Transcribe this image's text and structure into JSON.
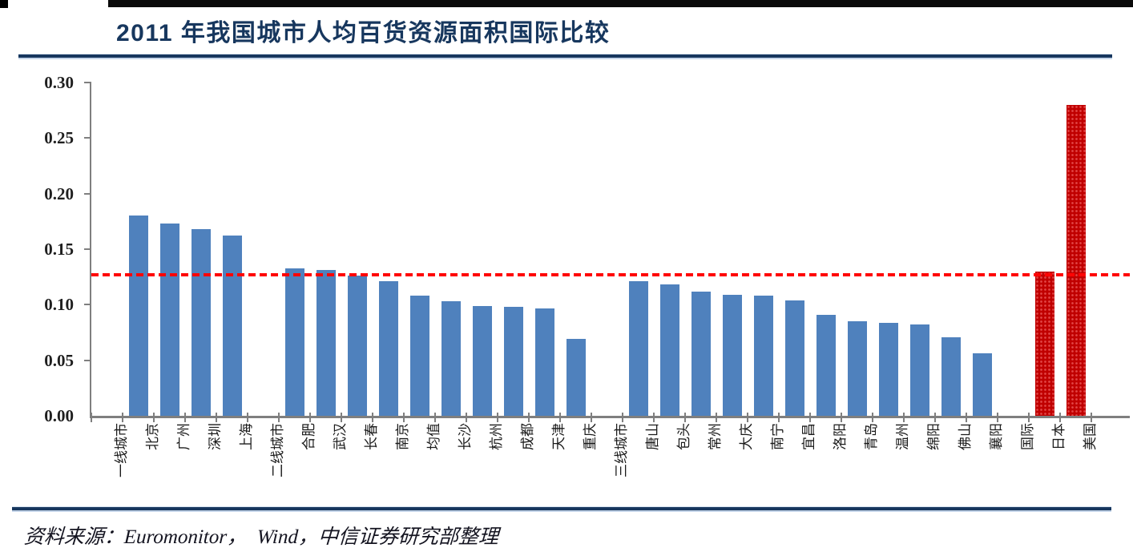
{
  "header": {
    "title": "2011 年我国城市人均百货资源面积国际比较"
  },
  "footer": {
    "source": "资料来源：Euromonitor，  Wind，中信证券研究部整理"
  },
  "colors": {
    "title_navy": "#17375E",
    "bar_blue": "#4F81BD",
    "bar_red": "#C00000",
    "reference_red": "#FF0000",
    "axis_gray": "#7F7F7F"
  },
  "chart_data": {
    "type": "bar",
    "title": "2011 年我国城市人均百货资源面积国际比较",
    "xlabel": "",
    "ylabel": "",
    "ylim": [
      0,
      0.3
    ],
    "y_ticks": [
      0.0,
      0.05,
      0.1,
      0.15,
      0.2,
      0.25,
      0.3
    ],
    "y_tick_labels": [
      "0.00",
      "0.05",
      "0.10",
      "0.15",
      "0.20",
      "0.25",
      "0.30"
    ],
    "grid": false,
    "legend_position": "none",
    "reference_line": {
      "value": 0.127,
      "style": "dashed",
      "color": "#FF0000"
    },
    "categories": [
      "一线城市",
      "北京",
      "广州",
      "深圳",
      "上海",
      "二线城市",
      "合肥",
      "武汉",
      "长春",
      "南京",
      "均值",
      "长沙",
      "杭州",
      "成都",
      "天津",
      "重庆",
      "三线城市",
      "唐山",
      "包头",
      "常州",
      "大庆",
      "南宁",
      "宜昌",
      "洛阳",
      "青岛",
      "温州",
      "绵阳",
      "佛山",
      "襄阳",
      "国际",
      "日本",
      "美国"
    ],
    "values": [
      null,
      0.18,
      0.173,
      0.168,
      0.162,
      null,
      0.133,
      0.131,
      0.126,
      0.121,
      0.108,
      0.103,
      0.099,
      0.098,
      0.097,
      0.069,
      null,
      0.121,
      0.118,
      0.112,
      0.109,
      0.108,
      0.104,
      0.091,
      0.085,
      0.084,
      0.082,
      0.071,
      0.056,
      null,
      0.13,
      0.28
    ],
    "bar_colors": [
      null,
      "#4F81BD",
      "#4F81BD",
      "#4F81BD",
      "#4F81BD",
      null,
      "#4F81BD",
      "#4F81BD",
      "#4F81BD",
      "#4F81BD",
      "#4F81BD",
      "#4F81BD",
      "#4F81BD",
      "#4F81BD",
      "#4F81BD",
      "#4F81BD",
      null,
      "#4F81BD",
      "#4F81BD",
      "#4F81BD",
      "#4F81BD",
      "#4F81BD",
      "#4F81BD",
      "#4F81BD",
      "#4F81BD",
      "#4F81BD",
      "#4F81BD",
      "#4F81BD",
      "#4F81BD",
      null,
      "#C00000",
      "#C00000"
    ]
  }
}
